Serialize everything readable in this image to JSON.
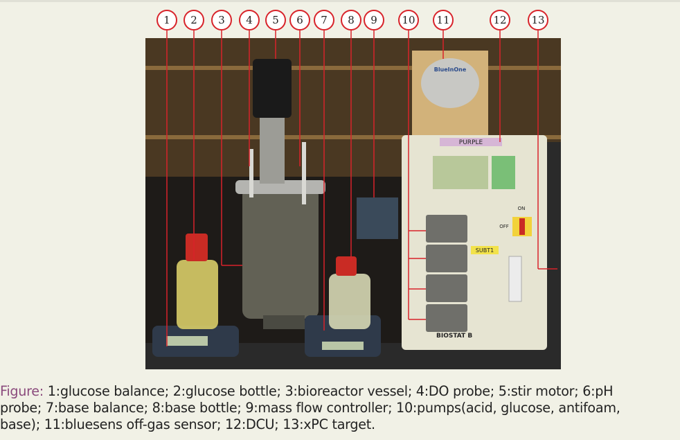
{
  "callouts": [
    "1",
    "2",
    "3",
    "4",
    "5",
    "6",
    "7",
    "8",
    "9",
    "10",
    "11",
    "12",
    "13"
  ],
  "photo_text": {
    "purple_label": "PURPLE",
    "bluesens_brand": "BlueInOne",
    "pump_tag": "SUBT1",
    "biostat_label": "BIOSTAT B",
    "on_label": "ON",
    "off_label": "OFF"
  },
  "caption": {
    "label": "Figure:",
    "line1": " 1:glucose balance; 2:glucose bottle; 3:bioreactor vessel; 4:DO probe; 5:stir motor; 6:pH",
    "line2": "probe; 7:base balance; 8:base bottle; 9:mass flow controller; 10:pumps(acid, glucose, antifoam,",
    "line3": "base); 11:bluesens off-gas sensor; 12:DCU; 13:xPC target."
  },
  "colors": {
    "callout_red": "#d8232a",
    "caption_label": "#8b4b7d",
    "background": "#f1f1e6"
  }
}
